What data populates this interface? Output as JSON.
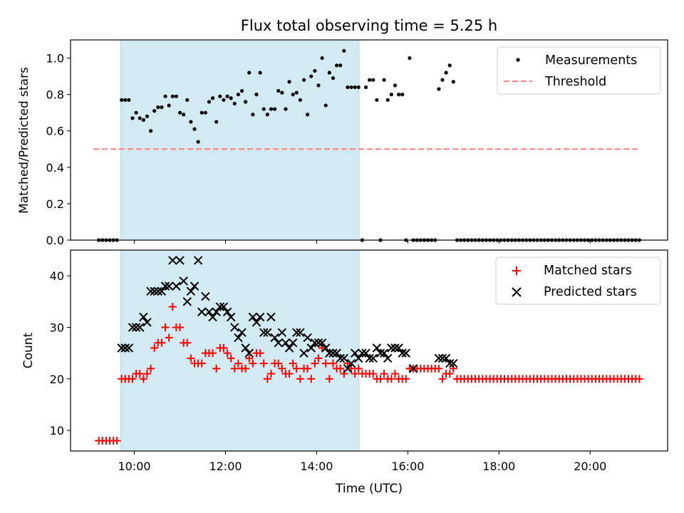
{
  "chart_data": [
    {
      "type": "scatter",
      "title": "Flux total observing time = 5.25 h",
      "xlabel": "",
      "ylabel": "Matched/Predicted stars",
      "xlim": [
        8.6,
        21.7
      ],
      "ylim": [
        0.0,
        1.1
      ],
      "yticks": [
        0.0,
        0.2,
        0.4,
        0.6,
        0.8,
        1.0
      ],
      "ytick_labels": [
        "0.0",
        "0.2",
        "0.4",
        "0.6",
        "0.8",
        "1.0"
      ],
      "xticks": [
        10,
        12,
        14,
        16,
        18,
        20
      ],
      "shaded_span": [
        9.7,
        14.93
      ],
      "shade_color": "#add8e6",
      "legend_position": "upper right",
      "series": [
        {
          "name": "Measurements",
          "marker": "dot",
          "color": "#000000",
          "x": [
            9.22,
            9.3,
            9.38,
            9.46,
            9.54,
            9.62,
            9.72,
            9.8,
            9.88,
            9.96,
            10.04,
            10.12,
            10.2,
            10.28,
            10.36,
            10.44,
            10.52,
            10.6,
            10.68,
            10.76,
            10.84,
            10.92,
            11.0,
            11.08,
            11.16,
            11.24,
            11.32,
            11.4,
            11.48,
            11.56,
            11.64,
            11.72,
            11.8,
            11.88,
            11.96,
            12.04,
            12.12,
            12.2,
            12.28,
            12.36,
            12.44,
            12.52,
            12.6,
            12.68,
            12.76,
            12.84,
            12.92,
            13.0,
            13.08,
            13.16,
            13.24,
            13.32,
            13.4,
            13.48,
            13.56,
            13.64,
            13.72,
            13.8,
            13.88,
            13.96,
            14.04,
            14.12,
            14.2,
            14.28,
            14.36,
            14.44,
            14.52,
            14.6,
            14.68,
            14.76,
            14.84,
            14.92,
            15.0,
            15.08,
            15.16,
            15.24,
            15.32,
            15.4,
            15.48,
            15.56,
            15.64,
            15.72,
            15.8,
            15.88,
            15.96,
            16.04,
            16.12,
            16.2,
            16.28,
            16.36,
            16.44,
            16.52,
            16.6,
            16.68,
            16.76,
            16.84,
            16.92,
            17.0,
            17.08,
            17.16,
            17.24,
            17.32,
            17.4,
            17.48,
            17.56,
            17.64,
            17.72,
            17.8,
            17.88,
            17.96,
            18.04,
            18.12,
            18.2,
            18.28,
            18.36,
            18.44,
            18.52,
            18.6,
            18.68,
            18.76,
            18.84,
            18.92,
            19.0,
            19.08,
            19.16,
            19.24,
            19.32,
            19.4,
            19.48,
            19.56,
            19.64,
            19.72,
            19.8,
            19.88,
            19.96,
            20.04,
            20.12,
            20.2,
            20.28,
            20.36,
            20.44,
            20.52,
            20.6,
            20.68,
            20.76,
            20.84,
            20.92,
            21.0,
            21.08
          ],
          "y": [
            0,
            0,
            0,
            0,
            0,
            0,
            0.77,
            0.77,
            0.77,
            0.67,
            0.7,
            0.67,
            0.66,
            0.68,
            0.6,
            0.71,
            0.73,
            0.73,
            0.79,
            0.74,
            0.79,
            0.79,
            0.7,
            0.69,
            0.77,
            0.65,
            0.61,
            0.54,
            0.7,
            0.7,
            0.76,
            0.78,
            0.65,
            0.79,
            0.77,
            0.79,
            0.78,
            0.75,
            0.8,
            0.82,
            0.76,
            0.92,
            0.69,
            0.8,
            0.92,
            0.72,
            0.69,
            0.72,
            0.72,
            0.82,
            0.81,
            0.72,
            0.87,
            0.8,
            0.81,
            0.77,
            0.88,
            0.69,
            0.9,
            0.93,
            0.85,
            1.0,
            0.74,
            0.92,
            0.89,
            0.96,
            0.96,
            1.04,
            0.84,
            0.84,
            0.84,
            0.84,
            0,
            0.84,
            0.88,
            0.88,
            0.77,
            0,
            0.88,
            0.77,
            0.8,
            0.85,
            0.8,
            0.8,
            0,
            1.0,
            0,
            0,
            0,
            0,
            0,
            0,
            0,
            0.83,
            0.88,
            0.92,
            0.96,
            0.87,
            0,
            0,
            0,
            0,
            0,
            0,
            0,
            0,
            0,
            0,
            0,
            0,
            0,
            0,
            0,
            0,
            0,
            0,
            0,
            0,
            0,
            0,
            0,
            0,
            0,
            0,
            0,
            0,
            0,
            0,
            0,
            0,
            0,
            0,
            0,
            0,
            0,
            0,
            0,
            0,
            0,
            0,
            0,
            0,
            0,
            0,
            0,
            0,
            0,
            0,
            0
          ]
        },
        {
          "name": "Threshold",
          "marker": "dashed-line",
          "color": "#ff7f7f",
          "x": [
            9.1,
            21.05
          ],
          "y": [
            0.5,
            0.5
          ]
        }
      ]
    },
    {
      "type": "scatter",
      "title": "",
      "xlabel": "Time (UTC)",
      "ylabel": "Count",
      "xlim": [
        8.6,
        21.7
      ],
      "ylim": [
        6.0,
        45.0
      ],
      "yticks": [
        10,
        20,
        30,
        40
      ],
      "ytick_labels": [
        "10",
        "20",
        "30",
        "40"
      ],
      "xticks": [
        10,
        12,
        14,
        16,
        18,
        20
      ],
      "xtick_labels": [
        "10:00",
        "12:00",
        "14:00",
        "16:00",
        "18:00",
        "20:00"
      ],
      "shaded_span": [
        9.7,
        14.93
      ],
      "shade_color": "#add8e6",
      "legend_position": "upper right",
      "series": [
        {
          "name": "Matched stars",
          "marker": "plus",
          "color": "#ff0000",
          "x": [
            9.22,
            9.3,
            9.38,
            9.46,
            9.54,
            9.62,
            9.72,
            9.8,
            9.88,
            9.96,
            10.04,
            10.12,
            10.2,
            10.28,
            10.36,
            10.44,
            10.52,
            10.6,
            10.68,
            10.76,
            10.84,
            10.92,
            11.0,
            11.08,
            11.16,
            11.24,
            11.32,
            11.4,
            11.48,
            11.56,
            11.64,
            11.72,
            11.8,
            11.88,
            11.96,
            12.04,
            12.12,
            12.2,
            12.28,
            12.36,
            12.44,
            12.52,
            12.6,
            12.68,
            12.76,
            12.84,
            12.92,
            13.0,
            13.08,
            13.16,
            13.24,
            13.32,
            13.4,
            13.48,
            13.56,
            13.64,
            13.72,
            13.8,
            13.88,
            13.96,
            14.04,
            14.12,
            14.2,
            14.28,
            14.36,
            14.44,
            14.52,
            14.6,
            14.68,
            14.76,
            14.84,
            14.92,
            15.0,
            15.08,
            15.16,
            15.24,
            15.32,
            15.4,
            15.48,
            15.56,
            15.64,
            15.72,
            15.8,
            15.88,
            15.96,
            16.04,
            16.12,
            16.2,
            16.28,
            16.36,
            16.44,
            16.52,
            16.6,
            16.68,
            16.76,
            16.84,
            16.92,
            17.0,
            17.08,
            17.16,
            17.24,
            17.32,
            17.4,
            17.48,
            17.56,
            17.64,
            17.72,
            17.8,
            17.88,
            17.96,
            18.04,
            18.12,
            18.2,
            18.28,
            18.36,
            18.44,
            18.52,
            18.6,
            18.68,
            18.76,
            18.84,
            18.92,
            19.0,
            19.08,
            19.16,
            19.24,
            19.32,
            19.4,
            19.48,
            19.56,
            19.64,
            19.72,
            19.8,
            19.88,
            19.96,
            20.04,
            20.12,
            20.2,
            20.28,
            20.36,
            20.44,
            20.52,
            20.6,
            20.68,
            20.76,
            20.84,
            20.92,
            21.0,
            21.08
          ],
          "y": [
            8,
            8,
            8,
            8,
            8,
            8,
            20,
            20,
            20,
            20,
            21,
            21,
            20,
            21,
            22,
            26,
            27,
            27,
            30,
            28,
            34,
            30,
            30,
            27,
            27,
            24,
            23,
            23,
            23,
            25,
            25,
            25,
            22,
            26,
            26,
            25,
            24,
            22,
            23,
            22,
            22,
            24,
            23,
            25,
            25,
            23,
            20,
            21,
            23,
            23,
            22,
            21,
            21,
            23,
            22,
            20,
            22,
            22,
            20,
            23,
            24,
            26,
            23,
            20,
            23,
            22,
            22,
            21,
            23,
            22,
            21,
            22,
            21,
            21,
            21,
            21,
            20,
            20,
            21,
            20,
            20,
            21,
            20,
            20,
            20,
            22,
            22,
            22,
            22,
            22,
            22,
            22,
            22,
            22,
            20,
            21,
            21,
            22,
            20,
            20,
            20,
            20,
            20,
            20,
            20,
            20,
            20,
            20,
            20,
            20,
            20,
            20,
            20,
            20,
            20,
            20,
            20,
            20,
            20,
            20,
            20,
            20,
            20,
            20,
            20,
            20,
            20,
            20,
            20,
            20,
            20,
            20,
            20,
            20,
            20,
            20,
            20,
            20,
            20,
            20,
            20,
            20,
            20,
            20,
            20,
            20,
            20,
            20,
            20
          ]
        },
        {
          "name": "Predicted stars",
          "marker": "x",
          "color": "#000000",
          "x": [
            9.72,
            9.8,
            9.88,
            9.96,
            10.04,
            10.12,
            10.2,
            10.28,
            10.36,
            10.44,
            10.52,
            10.6,
            10.68,
            10.76,
            10.84,
            10.92,
            11.0,
            11.08,
            11.16,
            11.24,
            11.32,
            11.4,
            11.48,
            11.56,
            11.64,
            11.72,
            11.8,
            11.88,
            11.96,
            12.04,
            12.12,
            12.2,
            12.28,
            12.36,
            12.44,
            12.52,
            12.6,
            12.68,
            12.76,
            12.84,
            12.92,
            13.0,
            13.08,
            13.16,
            13.24,
            13.32,
            13.4,
            13.48,
            13.56,
            13.64,
            13.72,
            13.8,
            13.88,
            13.96,
            14.04,
            14.12,
            14.2,
            14.28,
            14.36,
            14.44,
            14.52,
            14.6,
            14.68,
            14.76,
            14.84,
            14.92,
            15.0,
            15.08,
            15.16,
            15.24,
            15.32,
            15.4,
            15.48,
            15.56,
            15.64,
            15.72,
            15.8,
            15.88,
            15.96,
            16.12,
            16.68,
            16.76,
            16.84,
            16.92,
            17.0
          ],
          "y": [
            26,
            26,
            26,
            30,
            30,
            30,
            32,
            31,
            37,
            37,
            37,
            37,
            38,
            38,
            43,
            38,
            43,
            39,
            35,
            37,
            38,
            43,
            33,
            36,
            33,
            32,
            33,
            34,
            34,
            33,
            32,
            30,
            28,
            29,
            26,
            25,
            32,
            31,
            32,
            29,
            29,
            32,
            28,
            27,
            29,
            27,
            26,
            27,
            29,
            29,
            25,
            28,
            26,
            27,
            27,
            27,
            26,
            25,
            25,
            25,
            24,
            24,
            22,
            23,
            25,
            24,
            25,
            25,
            24,
            24,
            26,
            25,
            25,
            24,
            26,
            26,
            26,
            25,
            25,
            22,
            24,
            24,
            24,
            23,
            23
          ]
        }
      ]
    }
  ]
}
